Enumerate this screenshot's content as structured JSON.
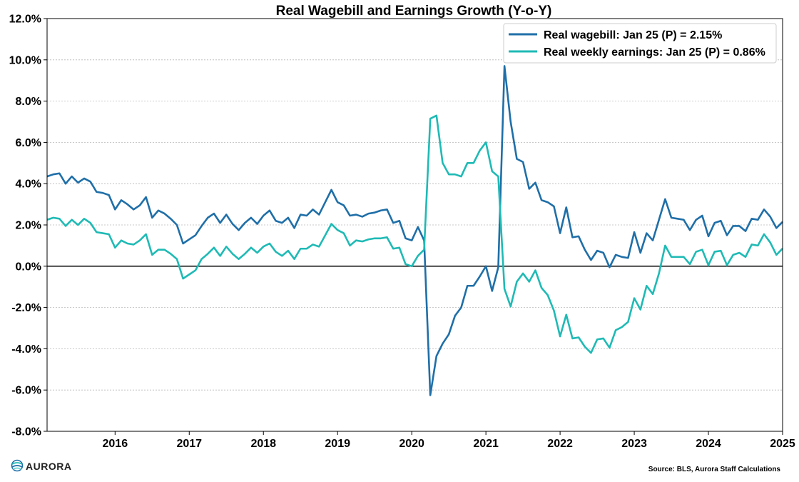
{
  "chart_data": {
    "type": "line",
    "title": "Real Wagebill and Earnings Growth (Y-o-Y)",
    "xlabel": "",
    "ylabel": "",
    "x_ticks": [
      "2016",
      "2017",
      "2018",
      "2019",
      "2020",
      "2021",
      "2022",
      "2023",
      "2024",
      "2025"
    ],
    "y_ticks": [
      "12.0%",
      "10.0%",
      "8.0%",
      "6.0%",
      "4.0%",
      "2.0%",
      "0.0%",
      "-2.0%",
      "-4.0%",
      "-6.0%",
      "-8.0%"
    ],
    "xlim": [
      "2015-02",
      "2025-01"
    ],
    "ylim": [
      -8,
      12
    ],
    "grid": "horizontal-dashed",
    "legend_position": "top-right",
    "zero_line": true,
    "start_month": "2015-02",
    "series": [
      {
        "name": "Real wagebill: Jan 25 (P) = 2.15%",
        "color": "#1f6fa8",
        "values": [
          4.35,
          4.45,
          4.5,
          4.0,
          4.35,
          4.05,
          4.25,
          4.1,
          3.6,
          3.55,
          3.45,
          2.75,
          3.2,
          3.0,
          2.75,
          2.95,
          3.35,
          2.35,
          2.7,
          2.55,
          2.3,
          2.0,
          1.1,
          1.3,
          1.5,
          1.95,
          2.35,
          2.55,
          2.1,
          2.5,
          2.05,
          1.75,
          2.1,
          2.35,
          2.05,
          2.45,
          2.7,
          2.2,
          2.1,
          2.35,
          1.85,
          2.5,
          2.45,
          2.75,
          2.5,
          3.1,
          3.7,
          3.1,
          2.95,
          2.45,
          2.5,
          2.4,
          2.55,
          2.6,
          2.7,
          2.75,
          2.1,
          2.2,
          1.35,
          1.25,
          1.9,
          1.25,
          -6.25,
          -4.35,
          -3.75,
          -3.3,
          -2.4,
          -2.0,
          -0.95,
          -0.95,
          -0.5,
          0.0,
          -1.2,
          -0.05,
          9.7,
          7.0,
          5.2,
          5.05,
          3.75,
          4.05,
          3.2,
          3.1,
          2.9,
          1.6,
          2.85,
          1.4,
          1.45,
          0.8,
          0.3,
          0.75,
          0.65,
          -0.05,
          0.55,
          0.45,
          0.4,
          1.65,
          0.65,
          1.6,
          1.25,
          2.25,
          3.25,
          2.35,
          2.3,
          2.25,
          1.75,
          2.25,
          2.45,
          1.45,
          2.1,
          2.2,
          1.5,
          1.95,
          1.95,
          1.7,
          2.3,
          2.25,
          2.75,
          2.4,
          1.85,
          2.15
        ]
      },
      {
        "name": "Real weekly earnings: Jan 25 (P) = 0.86%",
        "color": "#1fbab5",
        "values": [
          2.25,
          2.35,
          2.3,
          1.95,
          2.25,
          2.0,
          2.3,
          2.1,
          1.65,
          1.6,
          1.55,
          0.9,
          1.25,
          1.1,
          1.05,
          1.25,
          1.55,
          0.55,
          0.8,
          0.8,
          0.6,
          0.35,
          -0.6,
          -0.4,
          -0.2,
          0.35,
          0.6,
          0.9,
          0.5,
          0.95,
          0.6,
          0.35,
          0.6,
          0.9,
          0.65,
          0.95,
          1.1,
          0.7,
          0.5,
          0.75,
          0.35,
          0.85,
          0.85,
          1.05,
          0.95,
          1.5,
          2.05,
          1.75,
          1.6,
          1.0,
          1.25,
          1.2,
          1.3,
          1.35,
          1.35,
          1.4,
          0.85,
          0.9,
          0.1,
          0.0,
          0.5,
          0.8,
          7.15,
          7.3,
          5.0,
          4.45,
          4.45,
          4.35,
          5.0,
          5.0,
          5.6,
          6.0,
          4.6,
          4.35,
          -1.1,
          -1.95,
          -0.75,
          -0.35,
          -0.75,
          -0.2,
          -1.05,
          -1.4,
          -2.15,
          -3.4,
          -2.35,
          -3.5,
          -3.45,
          -3.9,
          -4.2,
          -3.55,
          -3.5,
          -3.95,
          -3.1,
          -2.95,
          -2.7,
          -1.55,
          -2.1,
          -0.95,
          -1.35,
          -0.35,
          1.0,
          0.45,
          0.45,
          0.45,
          0.1,
          0.7,
          0.8,
          0.05,
          0.7,
          0.75,
          0.05,
          0.55,
          0.65,
          0.45,
          1.05,
          1.0,
          1.55,
          1.15,
          0.55,
          0.86
        ]
      }
    ]
  },
  "source_note": "Source: BLS, Aurora Staff Calculations",
  "logo": {
    "text": "AURORA",
    "icon": "aurora-globe-icon",
    "colors": [
      "#1f6fa8",
      "#1fbab5",
      "#6fd3cf"
    ]
  },
  "colors": {
    "axis": "#000000",
    "grid": "#b8b8b8",
    "zero_line": "#000000"
  }
}
